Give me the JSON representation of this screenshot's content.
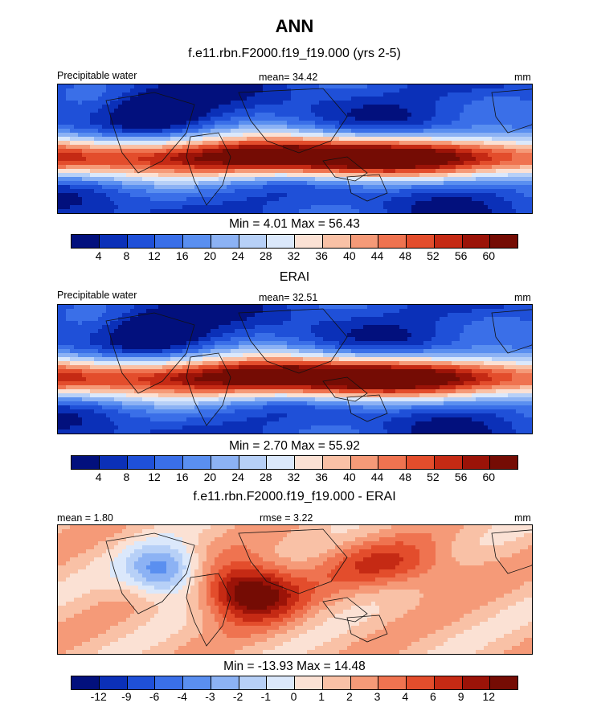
{
  "main_title": "ANN",
  "panels": [
    {
      "title": "f.e11.rbn.F2000.f19_f19.000 (yrs 2-5)",
      "left_label": "Precipitable water",
      "center_label": "mean=  34.42",
      "right_label": "mm",
      "minmax": "Min =   4.01 Max =  56.43",
      "colorbar": {
        "labels": [
          "4",
          "8",
          "12",
          "16",
          "20",
          "24",
          "28",
          "32",
          "36",
          "40",
          "44",
          "48",
          "52",
          "56",
          "60"
        ],
        "colors": [
          "#02107d",
          "#0b30b8",
          "#1f50d8",
          "#3a6fe8",
          "#5a8ff0",
          "#8cb2f4",
          "#b7d0f7",
          "#dbe8fb",
          "#fbe1d4",
          "#f9c1a6",
          "#f59a78",
          "#ef7350",
          "#e34d2c",
          "#c52a14",
          "#9b1308",
          "#750c04"
        ]
      }
    },
    {
      "title": "ERAI",
      "left_label": "Precipitable water",
      "center_label": "mean=  32.51",
      "right_label": "mm",
      "minmax": "Min =   2.70 Max =  55.92",
      "colorbar": {
        "labels": [
          "4",
          "8",
          "12",
          "16",
          "20",
          "24",
          "28",
          "32",
          "36",
          "40",
          "44",
          "48",
          "52",
          "56",
          "60"
        ],
        "colors": [
          "#02107d",
          "#0b30b8",
          "#1f50d8",
          "#3a6fe8",
          "#5a8ff0",
          "#8cb2f4",
          "#b7d0f7",
          "#dbe8fb",
          "#fbe1d4",
          "#f9c1a6",
          "#f59a78",
          "#ef7350",
          "#e34d2c",
          "#c52a14",
          "#9b1308",
          "#750c04"
        ]
      }
    },
    {
      "title": "f.e11.rbn.F2000.f19_f19.000 - ERAI",
      "left_label": "mean =   1.80",
      "center_label": "rmse =   3.22",
      "right_label": "mm",
      "minmax": "Min = -13.93 Max =  14.48",
      "colorbar": {
        "labels": [
          "-12",
          "-9",
          "-6",
          "-4",
          "-3",
          "-2",
          "-1",
          "0",
          "1",
          "2",
          "3",
          "4",
          "6",
          "9",
          "12"
        ],
        "colors": [
          "#02107d",
          "#0b30b8",
          "#1f50d8",
          "#3a6fe8",
          "#5a8ff0",
          "#8cb2f4",
          "#b7d0f7",
          "#dbe8fb",
          "#fbe1d4",
          "#f9c1a6",
          "#f59a78",
          "#ef7350",
          "#e34d2c",
          "#c52a14",
          "#9b1308",
          "#750c04"
        ]
      }
    }
  ],
  "chart_data": [
    {
      "type": "heatmap",
      "title": "f.e11.rbn.F2000.f19_f19.000 (yrs 2-5)",
      "variable": "Precipitable water",
      "units": "mm",
      "mean": 34.42,
      "min": 4.01,
      "max": 56.43,
      "levels": [
        4,
        8,
        12,
        16,
        20,
        24,
        28,
        32,
        36,
        40,
        44,
        48,
        52,
        56,
        60
      ]
    },
    {
      "type": "heatmap",
      "title": "ERAI",
      "variable": "Precipitable water",
      "units": "mm",
      "mean": 32.51,
      "min": 2.7,
      "max": 55.92,
      "levels": [
        4,
        8,
        12,
        16,
        20,
        24,
        28,
        32,
        36,
        40,
        44,
        48,
        52,
        56,
        60
      ]
    },
    {
      "type": "heatmap",
      "title": "f.e11.rbn.F2000.f19_f19.000 - ERAI",
      "units": "mm",
      "mean": 1.8,
      "rmse": 3.22,
      "min": -13.93,
      "max": 14.48,
      "levels": [
        -12,
        -9,
        -6,
        -4,
        -3,
        -2,
        -1,
        0,
        1,
        2,
        3,
        4,
        6,
        9,
        12
      ]
    }
  ]
}
